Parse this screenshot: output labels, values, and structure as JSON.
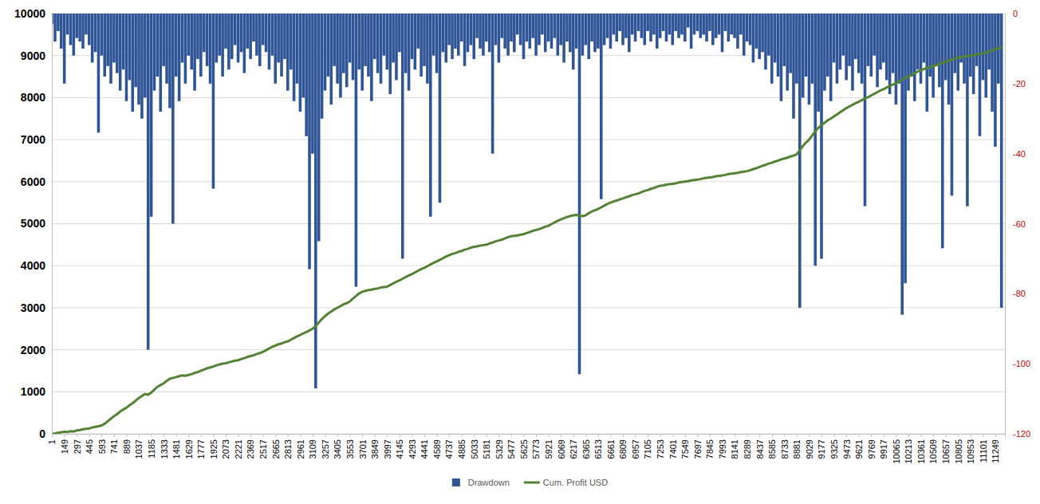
{
  "chart_data": {
    "type": "combo",
    "x": [
      1,
      38,
      75,
      112,
      149,
      186,
      223,
      260,
      297,
      334,
      371,
      408,
      445,
      482,
      519,
      556,
      593,
      630,
      667,
      704,
      741,
      778,
      815,
      852,
      889,
      926,
      963,
      1000,
      1037,
      1074,
      1111,
      1148,
      1185,
      1222,
      1259,
      1296,
      1333,
      1370,
      1407,
      1444,
      1481,
      1518,
      1555,
      1592,
      1629,
      1666,
      1703,
      1740,
      1777,
      1814,
      1851,
      1888,
      1925,
      1962,
      1999,
      2036,
      2073,
      2110,
      2147,
      2184,
      2221,
      2258,
      2295,
      2332,
      2369,
      2406,
      2443,
      2480,
      2517,
      2554,
      2591,
      2628,
      2665,
      2702,
      2739,
      2776,
      2813,
      2850,
      2887,
      2924,
      2961,
      2998,
      3035,
      3072,
      3109,
      3146,
      3183,
      3220,
      3257,
      3294,
      3331,
      3368,
      3405,
      3442,
      3479,
      3516,
      3553,
      3590,
      3627,
      3664,
      3701,
      3738,
      3775,
      3812,
      3849,
      3886,
      3923,
      3960,
      3997,
      4034,
      4071,
      4108,
      4145,
      4182,
      4219,
      4256,
      4293,
      4330,
      4367,
      4404,
      4441,
      4478,
      4515,
      4552,
      4589,
      4626,
      4663,
      4700,
      4737,
      4774,
      4811,
      4848,
      4885,
      4922,
      4959,
      4996,
      5033,
      5070,
      5107,
      5144,
      5181,
      5218,
      5255,
      5292,
      5329,
      5366,
      5403,
      5440,
      5477,
      5514,
      5551,
      5588,
      5625,
      5662,
      5699,
      5736,
      5773,
      5810,
      5847,
      5884,
      5921,
      5958,
      5995,
      6032,
      6069,
      6106,
      6143,
      6180,
      6217,
      6254,
      6291,
      6328,
      6365,
      6402,
      6439,
      6476,
      6513,
      6550,
      6587,
      6624,
      6661,
      6698,
      6735,
      6772,
      6809,
      6846,
      6883,
      6920,
      6957,
      6994,
      7031,
      7068,
      7105,
      7142,
      7179,
      7216,
      7253,
      7290,
      7327,
      7364,
      7401,
      7438,
      7475,
      7512,
      7549,
      7586,
      7623,
      7660,
      7697,
      7734,
      7771,
      7808,
      7845,
      7882,
      7919,
      7956,
      7993,
      8030,
      8067,
      8104,
      8141,
      8178,
      8215,
      8252,
      8289,
      8326,
      8363,
      8400,
      8437,
      8474,
      8511,
      8548,
      8585,
      8622,
      8659,
      8696,
      8733,
      8770,
      8807,
      8844,
      8881,
      8918,
      8955,
      8992,
      9029,
      9066,
      9103,
      9140,
      9177,
      9214,
      9251,
      9288,
      9325,
      9362,
      9399,
      9436,
      9473,
      9510,
      9547,
      9584,
      9621,
      9658,
      9695,
      9732,
      9769,
      9806,
      9843,
      9880,
      9917,
      9954,
      9991,
      10028,
      10065,
      10102,
      10139,
      10176,
      10213,
      10250,
      10287,
      10324,
      10361,
      10398,
      10435,
      10472,
      10509,
      10546,
      10583,
      10620,
      10657,
      10694,
      10731,
      10768,
      10805,
      10842,
      10879,
      10916,
      10953,
      10990,
      11027,
      11064,
      11101,
      11138,
      11175,
      11212,
      11249,
      11286,
      11323
    ],
    "series": [
      {
        "name": "Drawdown",
        "type": "bar",
        "axis": "y2",
        "color": "#2f5597",
        "values": [
          -3,
          -8,
          -5,
          -10,
          -20,
          -6,
          -9,
          -12,
          -7,
          -8,
          -10,
          -6,
          -9,
          -14,
          -11,
          -34,
          -12,
          -18,
          -15,
          -20,
          -14,
          -17,
          -22,
          -16,
          -25,
          -19,
          -28,
          -21,
          -26,
          -30,
          -24,
          -96,
          -58,
          -22,
          -18,
          -28,
          -15,
          -20,
          -27,
          -60,
          -18,
          -25,
          -14,
          -20,
          -12,
          -16,
          -22,
          -13,
          -18,
          -11,
          -15,
          -20,
          -50,
          -14,
          -12,
          -18,
          -10,
          -16,
          -13,
          -9,
          -14,
          -11,
          -17,
          -10,
          -13,
          -8,
          -12,
          -15,
          -9,
          -11,
          -16,
          -12,
          -20,
          -14,
          -18,
          -13,
          -22,
          -16,
          -25,
          -20,
          -28,
          -24,
          -35,
          -73,
          -40,
          -107,
          -65,
          -30,
          -22,
          -18,
          -26,
          -15,
          -20,
          -24,
          -17,
          -21,
          -14,
          -19,
          -78,
          -16,
          -22,
          -15,
          -18,
          -25,
          -13,
          -17,
          -20,
          -12,
          -16,
          -23,
          -14,
          -19,
          -11,
          -70,
          -17,
          -22,
          -13,
          -16,
          -10,
          -18,
          -15,
          -20,
          -58,
          -12,
          -17,
          -54,
          -11,
          -14,
          -9,
          -13,
          -10,
          -12,
          -8,
          -15,
          -11,
          -9,
          -13,
          -7,
          -10,
          -12,
          -8,
          -11,
          -40,
          -9,
          -14,
          -7,
          -10,
          -12,
          -8,
          -11,
          -6,
          -9,
          -13,
          -8,
          -10,
          -7,
          -12,
          -9,
          -6,
          -11,
          -8,
          -10,
          -7,
          -12,
          -9,
          -14,
          -8,
          -11,
          -16,
          -10,
          -103,
          -12,
          -9,
          -13,
          -8,
          -11,
          -10,
          -53,
          -9,
          -7,
          -10,
          -6,
          -8,
          -5,
          -9,
          -7,
          -11,
          -6,
          -8,
          -5,
          -7,
          -9,
          -5,
          -8,
          -6,
          -10,
          -7,
          -5,
          -8,
          -6,
          -9,
          -5,
          -7,
          -6,
          -8,
          -4,
          -10,
          -6,
          -5,
          -7,
          -6,
          -8,
          -5,
          -9,
          -7,
          -6,
          -11,
          -5,
          -8,
          -6,
          -7,
          -10,
          -6,
          -12,
          -8,
          -9,
          -14,
          -10,
          -13,
          -11,
          -16,
          -12,
          -20,
          -14,
          -18,
          -25,
          -15,
          -22,
          -17,
          -30,
          -20,
          -84,
          -24,
          -18,
          -26,
          -20,
          -72,
          -28,
          -70,
          -22,
          -18,
          -25,
          -14,
          -20,
          -16,
          -12,
          -19,
          -15,
          -22,
          -13,
          -17,
          -20,
          -55,
          -15,
          -18,
          -12,
          -21,
          -16,
          -14,
          -19,
          -23,
          -17,
          -26,
          -20,
          -86,
          -77,
          -22,
          -18,
          -25,
          -16,
          -20,
          -14,
          -28,
          -18,
          -24,
          -15,
          -21,
          -67,
          -19,
          -26,
          -52,
          -17,
          -22,
          -14,
          -20,
          -55,
          -18,
          -23,
          -15,
          -35,
          -19,
          -24,
          -16,
          -28,
          -38,
          -20,
          -84
        ]
      },
      {
        "name": "Cum. Profit USD",
        "type": "line",
        "color": "#548235",
        "values": [
          0,
          10,
          25,
          40,
          50,
          45,
          60,
          55,
          80,
          90,
          110,
          120,
          130,
          150,
          165,
          180,
          200,
          240,
          300,
          360,
          420,
          470,
          530,
          580,
          620,
          680,
          730,
          790,
          850,
          900,
          950,
          930,
          980,
          1050,
          1120,
          1160,
          1200,
          1260,
          1310,
          1330,
          1350,
          1370,
          1390,
          1380,
          1400,
          1420,
          1450,
          1470,
          1500,
          1530,
          1560,
          1580,
          1600,
          1630,
          1650,
          1670,
          1680,
          1700,
          1720,
          1740,
          1750,
          1780,
          1800,
          1830,
          1850,
          1870,
          1900,
          1920,
          1950,
          1990,
          2030,
          2070,
          2100,
          2130,
          2150,
          2180,
          2200,
          2240,
          2280,
          2320,
          2350,
          2390,
          2420,
          2460,
          2500,
          2560,
          2650,
          2730,
          2800,
          2860,
          2910,
          2960,
          3000,
          3040,
          3080,
          3110,
          3150,
          3220,
          3280,
          3340,
          3380,
          3400,
          3420,
          3430,
          3450,
          3460,
          3480,
          3490,
          3500,
          3540,
          3580,
          3620,
          3650,
          3690,
          3730,
          3770,
          3800,
          3840,
          3880,
          3920,
          3950,
          3990,
          4030,
          4070,
          4100,
          4140,
          4180,
          4220,
          4250,
          4280,
          4300,
          4330,
          4350,
          4380,
          4400,
          4430,
          4450,
          4460,
          4480,
          4490,
          4500,
          4530,
          4550,
          4580,
          4600,
          4620,
          4650,
          4680,
          4700,
          4710,
          4720,
          4740,
          4750,
          4780,
          4800,
          4830,
          4850,
          4870,
          4900,
          4930,
          4950,
          4990,
          5030,
          5070,
          5100,
          5130,
          5160,
          5180,
          5200,
          5210,
          5190,
          5180,
          5200,
          5250,
          5290,
          5320,
          5350,
          5390,
          5430,
          5470,
          5500,
          5530,
          5550,
          5580,
          5600,
          5630,
          5650,
          5680,
          5700,
          5720,
          5750,
          5780,
          5800,
          5830,
          5850,
          5880,
          5900,
          5910,
          5930,
          5940,
          5950,
          5960,
          5980,
          5990,
          6000,
          6010,
          6030,
          6040,
          6050,
          6060,
          6080,
          6090,
          6100,
          6110,
          6130,
          6140,
          6150,
          6160,
          6180,
          6190,
          6200,
          6210,
          6230,
          6240,
          6250,
          6270,
          6300,
          6320,
          6350,
          6380,
          6400,
          6430,
          6450,
          6480,
          6500,
          6530,
          6550,
          6570,
          6600,
          6620,
          6650,
          6750,
          6850,
          6930,
          7000,
          7100,
          7200,
          7280,
          7350,
          7400,
          7460,
          7500,
          7550,
          7600,
          7650,
          7700,
          7750,
          7790,
          7830,
          7870,
          7900,
          7940,
          7980,
          8010,
          8050,
          8090,
          8130,
          8170,
          8200,
          8240,
          8280,
          8310,
          8350,
          8390,
          8430,
          8470,
          8500,
          8540,
          8580,
          8620,
          8650,
          8680,
          8700,
          8730,
          8750,
          8770,
          8800,
          8830,
          8850,
          8880,
          8900,
          8930,
          8950,
          8960,
          8980,
          8990,
          9000,
          9010,
          9030,
          9040,
          9050,
          9070,
          9100,
          9120,
          9150,
          9170,
          9200
        ]
      }
    ],
    "xlim": [
      0,
      11364
    ],
    "xticks": [
      1,
      149,
      297,
      445,
      593,
      741,
      889,
      1037,
      1185,
      1333,
      1481,
      1629,
      1777,
      1925,
      2073,
      2221,
      2369,
      2517,
      2665,
      2813,
      2961,
      3109,
      3257,
      3405,
      3553,
      3701,
      3849,
      3997,
      4145,
      4293,
      4441,
      4589,
      4737,
      4885,
      5033,
      5181,
      5329,
      5477,
      5625,
      5773,
      5921,
      6069,
      6217,
      6365,
      6513,
      6661,
      6809,
      6957,
      7105,
      7253,
      7401,
      7549,
      7697,
      7845,
      7993,
      8141,
      8289,
      8437,
      8585,
      8733,
      8881,
      9029,
      9177,
      9325,
      9473,
      9621,
      9769,
      9917,
      10065,
      10213,
      10361,
      10509,
      10657,
      10805,
      10953,
      11101,
      11249
    ],
    "ylim": [
      0,
      10000
    ],
    "yticks": [
      0,
      1000,
      2000,
      3000,
      4000,
      5000,
      6000,
      7000,
      8000,
      9000,
      10000
    ],
    "y2lim": [
      -120,
      0
    ],
    "y2ticks": [
      0,
      -20,
      -40,
      -60,
      -80,
      -100,
      -120
    ],
    "grid": true,
    "legend": "bottom"
  }
}
